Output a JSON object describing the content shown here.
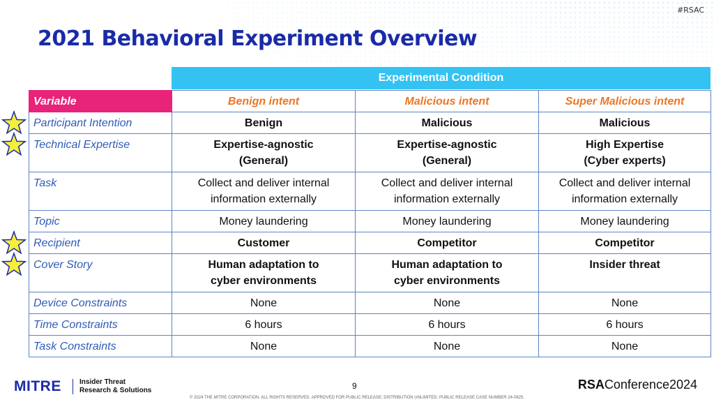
{
  "header": {
    "tag": "#RSAC",
    "title": "2021 Behavioral Experiment Overview"
  },
  "table": {
    "group_header": "Experimental Condition",
    "corner_label": "Variable",
    "columns": [
      "Benign intent",
      "Malicious intent",
      "Super Malicious intent"
    ],
    "rows": [
      {
        "variable": "Participant Intention",
        "starred": true,
        "bold": true,
        "cells": [
          "Benign",
          "Malicious",
          "Malicious"
        ]
      },
      {
        "variable": "Technical Expertise",
        "starred": true,
        "bold": true,
        "cells": [
          [
            "Expertise-agnostic",
            "(General)"
          ],
          [
            "Expertise-agnostic",
            "(General)"
          ],
          [
            "High Expertise",
            "(Cyber experts)"
          ]
        ]
      },
      {
        "variable": "Task",
        "starred": false,
        "bold": false,
        "cells": [
          [
            "Collect and deliver internal",
            "information externally"
          ],
          [
            "Collect and deliver internal",
            "information externally"
          ],
          [
            "Collect and deliver internal",
            "information externally"
          ]
        ]
      },
      {
        "variable": "Topic",
        "starred": false,
        "bold": false,
        "cells": [
          "Money laundering",
          "Money laundering",
          "Money laundering"
        ]
      },
      {
        "variable": "Recipient",
        "starred": true,
        "bold": true,
        "cells": [
          "Customer",
          "Competitor",
          "Competitor"
        ]
      },
      {
        "variable": "Cover Story",
        "starred": true,
        "bold": true,
        "cells": [
          [
            "Human adaptation to",
            "cyber environments"
          ],
          [
            "Human adaptation to",
            "cyber environments"
          ],
          [
            "Insider threat"
          ]
        ]
      },
      {
        "variable": "Device Constraints",
        "starred": false,
        "bold": false,
        "cells": [
          "None",
          "None",
          "None"
        ]
      },
      {
        "variable": "Time Constraints",
        "starred": false,
        "bold": false,
        "cells": [
          "6 hours",
          "6 hours",
          "6 hours"
        ]
      },
      {
        "variable": "Task Constraints",
        "starred": false,
        "bold": false,
        "cells": [
          "None",
          "None",
          "None"
        ]
      }
    ]
  },
  "footer": {
    "logo": "MITRE",
    "unit_line1": "Insider Threat",
    "unit_line2": "Research & Solutions",
    "page_number": "9",
    "conference_bold": "RSA",
    "conference_rest": "Conference2024",
    "copyright": "© 2024 THE MITRE CORPORATION. ALL RIGHTS RESERVED. APPROVED FOR PUBLIC RELEASE; DISTRIBUTION UNLIMITED. PUBLIC RELEASE CASE NUMBER 24-0625."
  },
  "colors": {
    "title": "#1a2ba8",
    "group_header_bg": "#33c2f2",
    "corner_bg": "#e8237a",
    "column_header_text": "#ec7626",
    "variable_text": "#2f5bb7",
    "border": "#5b84c4",
    "star_fill": "#f5ee3a",
    "star_stroke": "#1a2ba8"
  },
  "icons": {
    "star": "star-icon"
  }
}
